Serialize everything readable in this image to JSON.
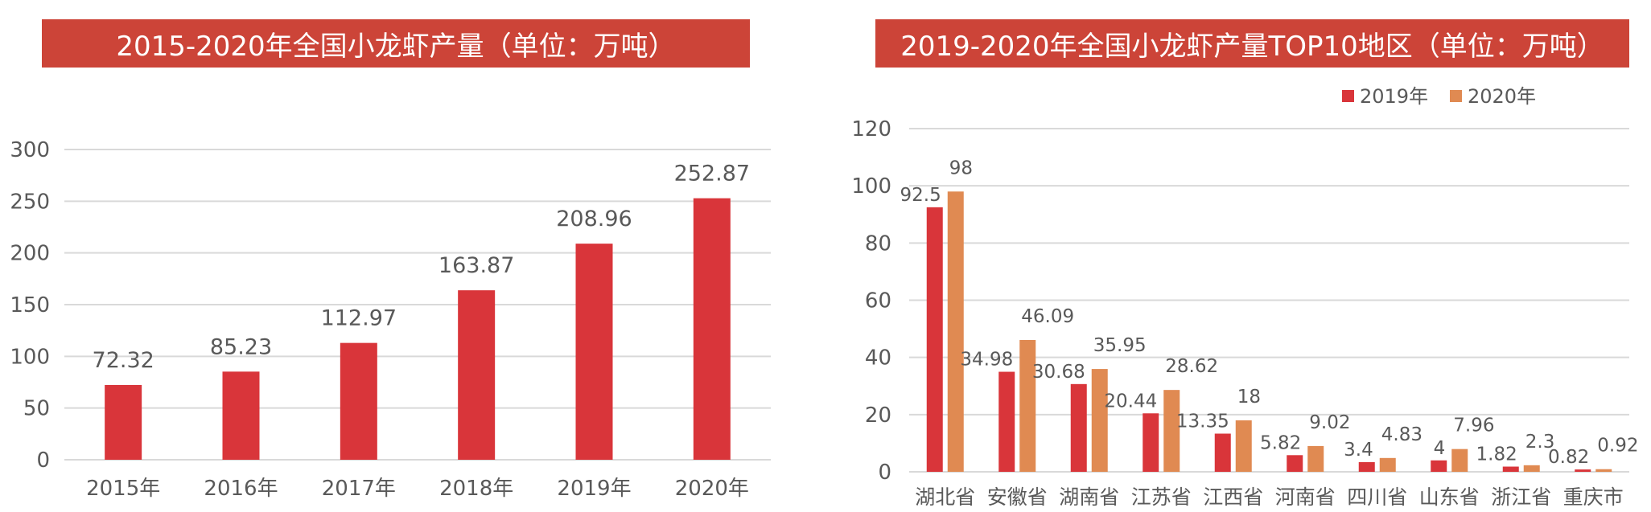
{
  "chart_data": [
    {
      "type": "bar",
      "title": "2015-2020年全国小龙虾产量（单位：万吨）",
      "categories": [
        "2015年",
        "2016年",
        "2017年",
        "2018年",
        "2019年",
        "2020年"
      ],
      "values": [
        72.32,
        85.23,
        112.97,
        163.87,
        208.96,
        252.87
      ],
      "value_labels": [
        "72.32",
        "85.23",
        "112.97",
        "163.87",
        "208.96",
        "252.87"
      ],
      "ylim": [
        0,
        300
      ],
      "yticks": [
        "0",
        "50",
        "100",
        "150",
        "200",
        "250",
        "300"
      ],
      "ytick_values": [
        0,
        50,
        100,
        150,
        200,
        250,
        300
      ],
      "grid": true,
      "colors": {
        "bar": "#d9353a",
        "grid": "#d9d9d9",
        "text": "#595959"
      }
    },
    {
      "type": "bar",
      "title": "2019-2020年全国小龙虾产量TOP10地区（单位：万吨）",
      "categories": [
        "湖北省",
        "安徽省",
        "湖南省",
        "江苏省",
        "江西省",
        "河南省",
        "四川省",
        "山东省",
        "浙江省",
        "重庆市"
      ],
      "series": [
        {
          "name": "2019年",
          "values": [
            92.5,
            34.98,
            30.68,
            20.44,
            13.35,
            5.82,
            3.4,
            4,
            1.82,
            0.82
          ],
          "labels": [
            "92.5",
            "34.98",
            "30.68",
            "20.44",
            "13.35",
            "5.82",
            "3.4",
            "4",
            "1.82",
            "0.82"
          ],
          "color": "#d9353a"
        },
        {
          "name": "2020年",
          "values": [
            98,
            46.09,
            35.95,
            28.62,
            18,
            9.02,
            4.83,
            7.96,
            2.3,
            0.92
          ],
          "labels": [
            "98",
            "46.09",
            "35.95",
            "28.62",
            "18",
            "9.02",
            "4.83",
            "7.96",
            "2.3",
            "0.92"
          ],
          "color": "#e08a52"
        }
      ],
      "ylim": [
        0,
        120
      ],
      "yticks": [
        "0",
        "20",
        "40",
        "60",
        "80",
        "100",
        "120"
      ],
      "ytick_values": [
        0,
        20,
        40,
        60,
        80,
        100,
        120
      ],
      "legend": "top-right",
      "grid": true,
      "colors": {
        "grid": "#d9d9d9",
        "text": "#595959"
      }
    }
  ]
}
